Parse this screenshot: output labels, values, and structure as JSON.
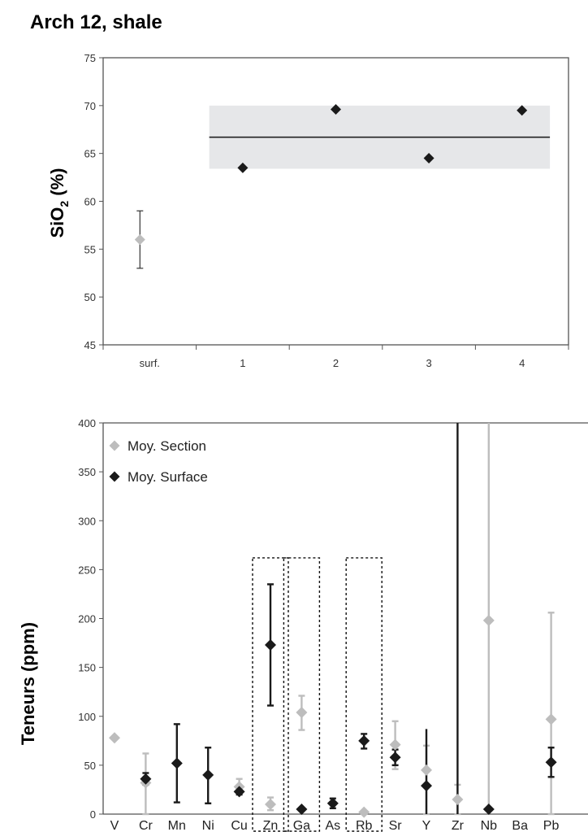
{
  "page_title": "Arch 12, shale",
  "colors": {
    "surface": "#1a1a1a",
    "section": "#bdbdbd",
    "band": "#e6e7e9",
    "axis": "#555555"
  },
  "chart_data": [
    {
      "type": "scatter",
      "ylabel_main": "SiO",
      "ylabel_sub": "2",
      "ylabel_rest": " (%)",
      "ylim": [
        45,
        75
      ],
      "yticks": [
        45,
        50,
        55,
        60,
        65,
        70,
        75
      ],
      "categories": [
        "surf.",
        "1",
        "2",
        "3",
        "4"
      ],
      "mean_line": 66.7,
      "band": [
        63.4,
        70
      ],
      "surface_point": {
        "category": "surf.",
        "value": 56,
        "err_low": 53,
        "err_high": 59
      },
      "points": [
        {
          "category": "1",
          "value": 63.5
        },
        {
          "category": "2",
          "value": 69.6
        },
        {
          "category": "3",
          "value": 64.5
        },
        {
          "category": "4",
          "value": 69.5
        }
      ]
    },
    {
      "type": "scatter",
      "ylabel": "Teneurs (ppm)",
      "ylim": [
        0,
        400
      ],
      "yticks": [
        0,
        50,
        100,
        150,
        200,
        250,
        300,
        350,
        400
      ],
      "categories": [
        "V",
        "Cr",
        "Mn",
        "Ni",
        "Cu",
        "Zn",
        "Ga",
        "As",
        "Rb",
        "Sr",
        "Y",
        "Zr",
        "Nb",
        "Ba",
        "Pb"
      ],
      "legend": [
        "Moy. Section",
        "Moy. Surface"
      ],
      "series": [
        {
          "name": "Moy. Section",
          "points": [
            {
              "category": "V",
              "value": 78
            },
            {
              "category": "Cr",
              "value": 32,
              "err_low": 0,
              "err_high": 62
            },
            {
              "category": "Cu",
              "value": 28,
              "err_low": 20,
              "err_high": 36
            },
            {
              "category": "Zn",
              "value": 10,
              "err_low": 4,
              "err_high": 17
            },
            {
              "category": "Ga",
              "value": 104,
              "err_low": 86,
              "err_high": 121
            },
            {
              "category": "Rb",
              "value": 2
            },
            {
              "category": "Sr",
              "value": 71,
              "err_low": 46,
              "err_high": 95
            },
            {
              "category": "Y",
              "value": 45,
              "err_low": 0,
              "err_high": 70
            },
            {
              "category": "Zr",
              "value": 15,
              "err_low": 0,
              "err_high": 30
            },
            {
              "category": "Nb",
              "value": 198,
              "err_low": 0,
              "err_high": 400
            },
            {
              "category": "Pb",
              "value": 97,
              "err_low": 0,
              "err_high": 206
            }
          ]
        },
        {
          "name": "Moy. Surface",
          "points": [
            {
              "category": "Cr",
              "value": 36,
              "err_low": 30,
              "err_high": 42
            },
            {
              "category": "Mn",
              "value": 52,
              "err_low": 12,
              "err_high": 92
            },
            {
              "category": "Ni",
              "value": 40,
              "err_low": 11,
              "err_high": 68
            },
            {
              "category": "Cu",
              "value": 23,
              "err_low": 20,
              "err_high": 27
            },
            {
              "category": "Zn",
              "value": 173,
              "err_low": 111,
              "err_high": 235
            },
            {
              "category": "Ga",
              "value": 5
            },
            {
              "category": "As",
              "value": 11,
              "err_low": 6,
              "err_high": 16
            },
            {
              "category": "Rb",
              "value": 75,
              "err_low": 67,
              "err_high": 82
            },
            {
              "category": "Sr",
              "value": 58,
              "err_low": 50,
              "err_high": 66
            },
            {
              "category": "Y",
              "value": 29,
              "err_low": 0,
              "err_high": 87
            },
            {
              "category": "Zr",
              "value": 0,
              "err_low": 0,
              "err_high": 400
            },
            {
              "category": "Nb",
              "value": 5
            },
            {
              "category": "Pb",
              "value": 53,
              "err_low": 38,
              "err_high": 68
            }
          ]
        }
      ],
      "highlight_boxes": [
        [
          "Zn"
        ],
        [
          "Ga"
        ],
        [
          "Rb"
        ]
      ]
    }
  ]
}
